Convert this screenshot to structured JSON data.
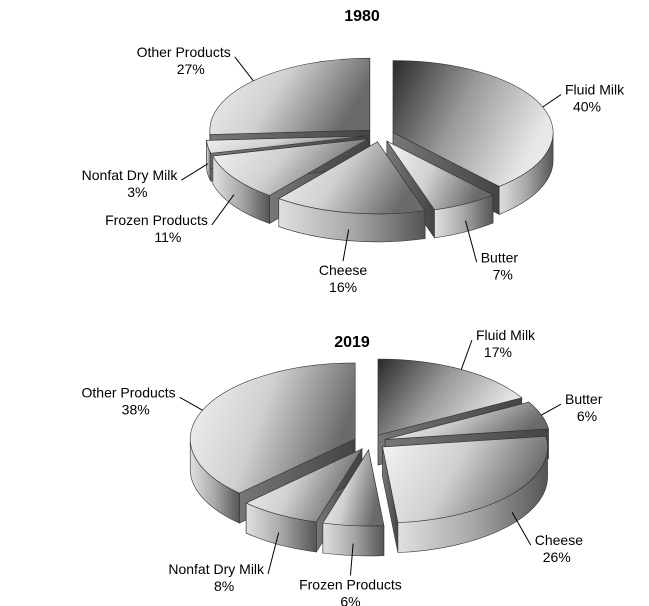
{
  "chart_data": [
    {
      "type": "pie",
      "title": "1980",
      "categories": [
        "Fluid Milk",
        "Butter",
        "Cheese",
        "Frozen Products",
        "Nonfat Dry Milk",
        "Other Products"
      ],
      "values": [
        40,
        7,
        16,
        11,
        3,
        27
      ],
      "value_labels": [
        "40%",
        "7%",
        "16%",
        "11%",
        "3%",
        "27%"
      ]
    },
    {
      "type": "pie",
      "title": "2019",
      "categories": [
        "Fluid Milk",
        "Butter",
        "Cheese",
        "Frozen Products",
        "Nonfat Dry Milk",
        "Other Products"
      ],
      "values": [
        17,
        6,
        26,
        6,
        8,
        38
      ],
      "value_labels": [
        "17%",
        "6%",
        "26%",
        "6%",
        "8%",
        "38%"
      ]
    }
  ]
}
